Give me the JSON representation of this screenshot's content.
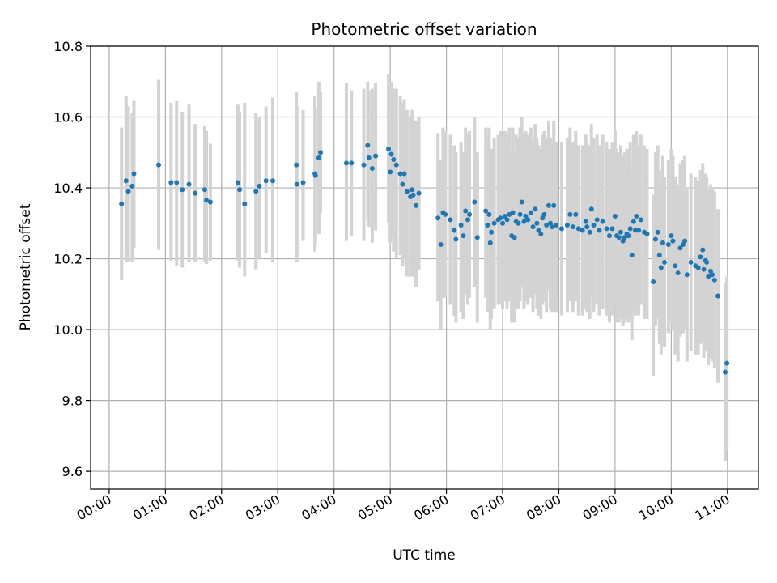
{
  "chart_data": {
    "type": "scatter",
    "title": "Photometric offset variation",
    "xlabel": "UTC time",
    "ylabel": "Photometric offset",
    "x_unit": "hours UTC",
    "xlim": [
      -0.33,
      11.55
    ],
    "ylim": [
      9.55,
      10.8
    ],
    "xticks": [
      0,
      1,
      2,
      3,
      4,
      5,
      6,
      7,
      8,
      9,
      10,
      11
    ],
    "xtick_labels": [
      "00:00",
      "01:00",
      "02:00",
      "03:00",
      "04:00",
      "05:00",
      "06:00",
      "07:00",
      "08:00",
      "09:00",
      "10:00",
      "11:00"
    ],
    "yticks": [
      9.6,
      9.8,
      10.0,
      10.2,
      10.4,
      10.6,
      10.8
    ],
    "ytick_labels": [
      "9.6",
      "9.8",
      "10.0",
      "10.2",
      "10.4",
      "10.6",
      "10.8"
    ],
    "grid": true,
    "marker_color": "#1f77b4",
    "errorbar_color": "#d3d3d3",
    "series": [
      {
        "points": [
          [
            0.22,
            10.355,
            10.14,
            10.57
          ],
          [
            0.3,
            10.42,
            10.19,
            10.66
          ],
          [
            0.34,
            10.39,
            10.19,
            10.63
          ],
          [
            0.41,
            10.405,
            10.19,
            10.61
          ],
          [
            0.44,
            10.44,
            10.23,
            10.645
          ],
          [
            0.88,
            10.465,
            10.225,
            10.705
          ],
          [
            1.1,
            10.415,
            10.195,
            10.64
          ],
          [
            1.2,
            10.415,
            10.18,
            10.645
          ],
          [
            1.3,
            10.395,
            10.175,
            10.615
          ],
          [
            1.42,
            10.41,
            10.19,
            10.635
          ],
          [
            1.53,
            10.385,
            10.19,
            10.58
          ],
          [
            1.7,
            10.395,
            10.19,
            10.575
          ],
          [
            1.73,
            10.365,
            10.185,
            10.56
          ],
          [
            1.8,
            10.36,
            10.195,
            10.525
          ],
          [
            2.29,
            10.415,
            10.195,
            10.635
          ],
          [
            2.32,
            10.395,
            10.175,
            10.615
          ],
          [
            2.41,
            10.355,
            10.15,
            10.64
          ],
          [
            2.61,
            10.39,
            10.17,
            10.61
          ],
          [
            2.67,
            10.405,
            10.2,
            10.6
          ],
          [
            2.79,
            10.42,
            10.215,
            10.63
          ],
          [
            2.91,
            10.42,
            10.19,
            10.655
          ],
          [
            3.33,
            10.465,
            10.245,
            10.67
          ],
          [
            3.34,
            10.41,
            10.19,
            10.63
          ],
          [
            3.45,
            10.415,
            10.25,
            10.62
          ],
          [
            3.66,
            10.44,
            10.22,
            10.66
          ],
          [
            3.67,
            10.435,
            10.245,
            10.625
          ],
          [
            3.73,
            10.485,
            10.27,
            10.7
          ],
          [
            3.76,
            10.5,
            10.33,
            10.67
          ],
          [
            4.22,
            10.47,
            10.25,
            10.695
          ],
          [
            4.31,
            10.47,
            10.265,
            10.675
          ],
          [
            4.53,
            10.465,
            10.25,
            10.68
          ],
          [
            4.6,
            10.52,
            10.31,
            10.7
          ],
          [
            4.62,
            10.485,
            10.29,
            10.675
          ],
          [
            4.68,
            10.455,
            10.245,
            10.68
          ],
          [
            4.74,
            10.49,
            10.28,
            10.695
          ],
          [
            4.97,
            10.51,
            10.3,
            10.72
          ],
          [
            5.0,
            10.445,
            10.245,
            10.65
          ],
          [
            5.02,
            10.495,
            10.26,
            10.7
          ],
          [
            5.06,
            10.48,
            10.22,
            10.68
          ],
          [
            5.11,
            10.465,
            10.2,
            10.68
          ],
          [
            5.18,
            10.44,
            10.21,
            10.66
          ],
          [
            5.22,
            10.41,
            10.18,
            10.64
          ],
          [
            5.25,
            10.44,
            10.2,
            10.65
          ],
          [
            5.3,
            10.39,
            10.15,
            10.62
          ],
          [
            5.36,
            10.375,
            10.15,
            10.6
          ],
          [
            5.39,
            10.395,
            10.16,
            10.62
          ],
          [
            5.41,
            10.38,
            10.15,
            10.59
          ],
          [
            5.46,
            10.35,
            10.12,
            10.59
          ],
          [
            5.51,
            10.385,
            10.17,
            10.6
          ],
          [
            5.85,
            10.315,
            10.08,
            10.555
          ],
          [
            5.9,
            10.24,
            10.0,
            10.48
          ],
          [
            5.94,
            10.33,
            10.09,
            10.57
          ],
          [
            5.98,
            10.325,
            10.09,
            10.56
          ],
          [
            6.07,
            10.31,
            10.07,
            10.55
          ],
          [
            6.14,
            10.28,
            10.04,
            10.52
          ],
          [
            6.17,
            10.255,
            10.02,
            10.5
          ],
          [
            6.26,
            10.295,
            10.05,
            10.53
          ],
          [
            6.3,
            10.265,
            10.03,
            10.5
          ],
          [
            6.34,
            10.335,
            10.1,
            10.57
          ],
          [
            6.38,
            10.31,
            10.07,
            10.55
          ],
          [
            6.41,
            10.325,
            10.09,
            10.56
          ],
          [
            6.5,
            10.36,
            10.12,
            10.6
          ],
          [
            6.55,
            10.26,
            10.02,
            10.5
          ],
          [
            6.7,
            10.335,
            10.09,
            10.57
          ],
          [
            6.73,
            10.295,
            10.05,
            10.54
          ],
          [
            6.76,
            10.325,
            10.08,
            10.57
          ],
          [
            6.78,
            10.245,
            10.0,
            10.49
          ],
          [
            6.8,
            10.275,
            10.03,
            10.51
          ],
          [
            6.85,
            10.3,
            10.06,
            10.54
          ],
          [
            6.92,
            10.31,
            10.07,
            10.55
          ],
          [
            6.96,
            10.315,
            10.07,
            10.56
          ],
          [
            7.0,
            10.3,
            10.06,
            10.54
          ],
          [
            7.04,
            10.32,
            10.08,
            10.56
          ],
          [
            7.08,
            10.31,
            10.06,
            10.55
          ],
          [
            7.12,
            10.325,
            10.08,
            10.57
          ],
          [
            7.16,
            10.265,
            10.02,
            10.51
          ],
          [
            7.18,
            10.33,
            10.09,
            10.57
          ],
          [
            7.21,
            10.26,
            10.02,
            10.5
          ],
          [
            7.24,
            10.305,
            10.06,
            10.55
          ],
          [
            7.28,
            10.3,
            10.06,
            10.54
          ],
          [
            7.31,
            10.325,
            10.08,
            10.57
          ],
          [
            7.34,
            10.36,
            10.12,
            10.6
          ],
          [
            7.38,
            10.305,
            10.06,
            10.55
          ],
          [
            7.41,
            10.32,
            10.08,
            10.56
          ],
          [
            7.45,
            10.31,
            10.07,
            10.55
          ],
          [
            7.5,
            10.33,
            10.09,
            10.57
          ],
          [
            7.54,
            10.29,
            10.05,
            10.53
          ],
          [
            7.58,
            10.34,
            10.1,
            10.58
          ],
          [
            7.61,
            10.3,
            10.06,
            10.54
          ],
          [
            7.64,
            10.28,
            10.04,
            10.52
          ],
          [
            7.68,
            10.27,
            10.03,
            10.51
          ],
          [
            7.71,
            10.315,
            10.07,
            10.55
          ],
          [
            7.74,
            10.325,
            10.08,
            10.56
          ],
          [
            7.78,
            10.295,
            10.05,
            10.54
          ],
          [
            7.82,
            10.35,
            10.11,
            10.59
          ],
          [
            7.85,
            10.3,
            10.06,
            10.54
          ],
          [
            7.88,
            10.29,
            10.05,
            10.53
          ],
          [
            7.91,
            10.35,
            10.11,
            10.59
          ],
          [
            7.95,
            10.295,
            10.05,
            10.53
          ],
          [
            8.05,
            10.285,
            10.04,
            10.53
          ],
          [
            8.15,
            10.295,
            10.05,
            10.54
          ],
          [
            8.2,
            10.325,
            10.08,
            10.57
          ],
          [
            8.25,
            10.29,
            10.05,
            10.53
          ],
          [
            8.3,
            10.325,
            10.08,
            10.56
          ],
          [
            8.35,
            10.285,
            10.04,
            10.52
          ],
          [
            8.42,
            10.28,
            10.04,
            10.52
          ],
          [
            8.48,
            10.305,
            10.06,
            10.55
          ],
          [
            8.5,
            10.29,
            10.05,
            10.53
          ],
          [
            8.55,
            10.275,
            10.03,
            10.52
          ],
          [
            8.58,
            10.34,
            10.1,
            10.58
          ],
          [
            8.62,
            10.295,
            10.05,
            10.54
          ],
          [
            8.68,
            10.31,
            10.07,
            10.55
          ],
          [
            8.72,
            10.28,
            10.04,
            10.52
          ],
          [
            8.78,
            10.305,
            10.06,
            10.55
          ],
          [
            8.85,
            10.285,
            10.04,
            10.53
          ],
          [
            8.9,
            10.265,
            10.02,
            10.51
          ],
          [
            8.95,
            10.285,
            10.04,
            10.53
          ],
          [
            9.0,
            10.32,
            10.08,
            10.56
          ],
          [
            9.03,
            10.265,
            10.02,
            10.51
          ],
          [
            9.07,
            10.26,
            10.02,
            10.5
          ],
          [
            9.1,
            10.275,
            10.03,
            10.52
          ],
          [
            9.14,
            10.25,
            10.01,
            10.49
          ],
          [
            9.17,
            10.26,
            10.02,
            10.5
          ],
          [
            9.21,
            10.27,
            10.03,
            10.51
          ],
          [
            9.24,
            10.265,
            10.02,
            10.51
          ],
          [
            9.27,
            10.285,
            10.04,
            10.53
          ],
          [
            9.3,
            10.21,
            9.97,
            10.45
          ],
          [
            9.33,
            10.305,
            10.06,
            10.55
          ],
          [
            9.36,
            10.28,
            10.04,
            10.52
          ],
          [
            9.38,
            10.32,
            10.08,
            10.56
          ],
          [
            9.42,
            10.28,
            10.04,
            10.52
          ],
          [
            9.46,
            10.31,
            10.07,
            10.55
          ],
          [
            9.52,
            10.275,
            10.03,
            10.52
          ],
          [
            9.57,
            10.27,
            10.03,
            10.51
          ],
          [
            9.68,
            10.135,
            9.87,
            10.38
          ],
          [
            9.72,
            10.255,
            10.01,
            10.5
          ],
          [
            9.76,
            10.275,
            10.03,
            10.52
          ],
          [
            9.79,
            10.21,
            9.96,
            10.45
          ],
          [
            9.82,
            10.175,
            9.93,
            10.42
          ],
          [
            9.85,
            10.245,
            9.99,
            10.49
          ],
          [
            9.88,
            10.19,
            9.95,
            10.43
          ],
          [
            9.95,
            10.24,
            9.99,
            10.48
          ],
          [
            10.0,
            10.265,
            10.02,
            10.51
          ],
          [
            10.03,
            10.25,
            10.0,
            10.49
          ],
          [
            10.07,
            10.18,
            9.93,
            10.43
          ],
          [
            10.12,
            10.16,
            9.91,
            10.41
          ],
          [
            10.16,
            10.23,
            9.98,
            10.47
          ],
          [
            10.21,
            10.24,
            9.99,
            10.48
          ],
          [
            10.24,
            10.25,
            10.0,
            10.49
          ],
          [
            10.28,
            10.155,
            9.91,
            10.4
          ],
          [
            10.35,
            10.19,
            9.94,
            10.44
          ],
          [
            10.43,
            10.18,
            9.93,
            10.43
          ],
          [
            10.48,
            10.175,
            9.93,
            10.42
          ],
          [
            10.52,
            10.205,
            9.96,
            10.45
          ],
          [
            10.56,
            10.225,
            9.98,
            10.47
          ],
          [
            10.58,
            10.17,
            9.92,
            10.42
          ],
          [
            10.61,
            10.195,
            9.95,
            10.44
          ],
          [
            10.63,
            10.19,
            9.94,
            10.43
          ],
          [
            10.66,
            10.15,
            9.9,
            10.4
          ],
          [
            10.7,
            10.165,
            9.92,
            10.41
          ],
          [
            10.73,
            10.155,
            9.91,
            10.4
          ],
          [
            10.77,
            10.14,
            9.89,
            10.39
          ],
          [
            10.83,
            10.095,
            9.85,
            10.34
          ],
          [
            10.96,
            9.88,
            9.63,
            10.13
          ],
          [
            10.99,
            9.905,
            9.66,
            10.15
          ]
        ]
      }
    ]
  }
}
